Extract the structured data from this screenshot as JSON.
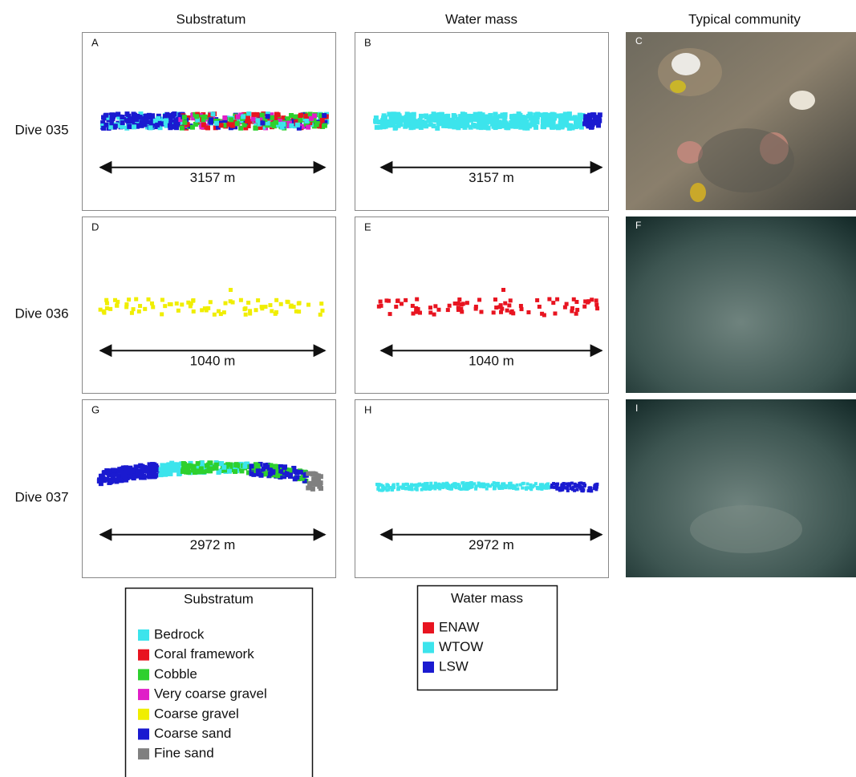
{
  "columns": [
    "Substratum",
    "Water mass",
    "Typical community"
  ],
  "rows": [
    {
      "label": "Dive 035",
      "panels": [
        "A",
        "B",
        "C"
      ],
      "distance": "3157 m"
    },
    {
      "label": "Dive 036",
      "panels": [
        "D",
        "E",
        "F"
      ],
      "distance": "1040 m"
    },
    {
      "label": "Dive 037",
      "panels": [
        "G",
        "H",
        "I"
      ],
      "distance": "2972 m"
    }
  ],
  "legends": {
    "substratum": {
      "title": "Substratum",
      "items": [
        {
          "label": "Bedrock",
          "color": "#3ce4ec"
        },
        {
          "label": "Coral framework",
          "color": "#e81420"
        },
        {
          "label": "Cobble",
          "color": "#2ed02e"
        },
        {
          "label": "Very coarse gravel",
          "color": "#e01ec8"
        },
        {
          "label": "Coarse gravel",
          "color": "#f0ee00"
        },
        {
          "label": "Coarse sand",
          "color": "#1a1ad0"
        },
        {
          "label": "Fine sand",
          "color": "#808080"
        }
      ]
    },
    "water_mass": {
      "title": "Water mass",
      "items": [
        {
          "label": "ENAW",
          "color": "#e81420"
        },
        {
          "label": "WTOW",
          "color": "#3ce4ec"
        },
        {
          "label": "LSW",
          "color": "#1a1ad0"
        }
      ]
    }
  }
}
